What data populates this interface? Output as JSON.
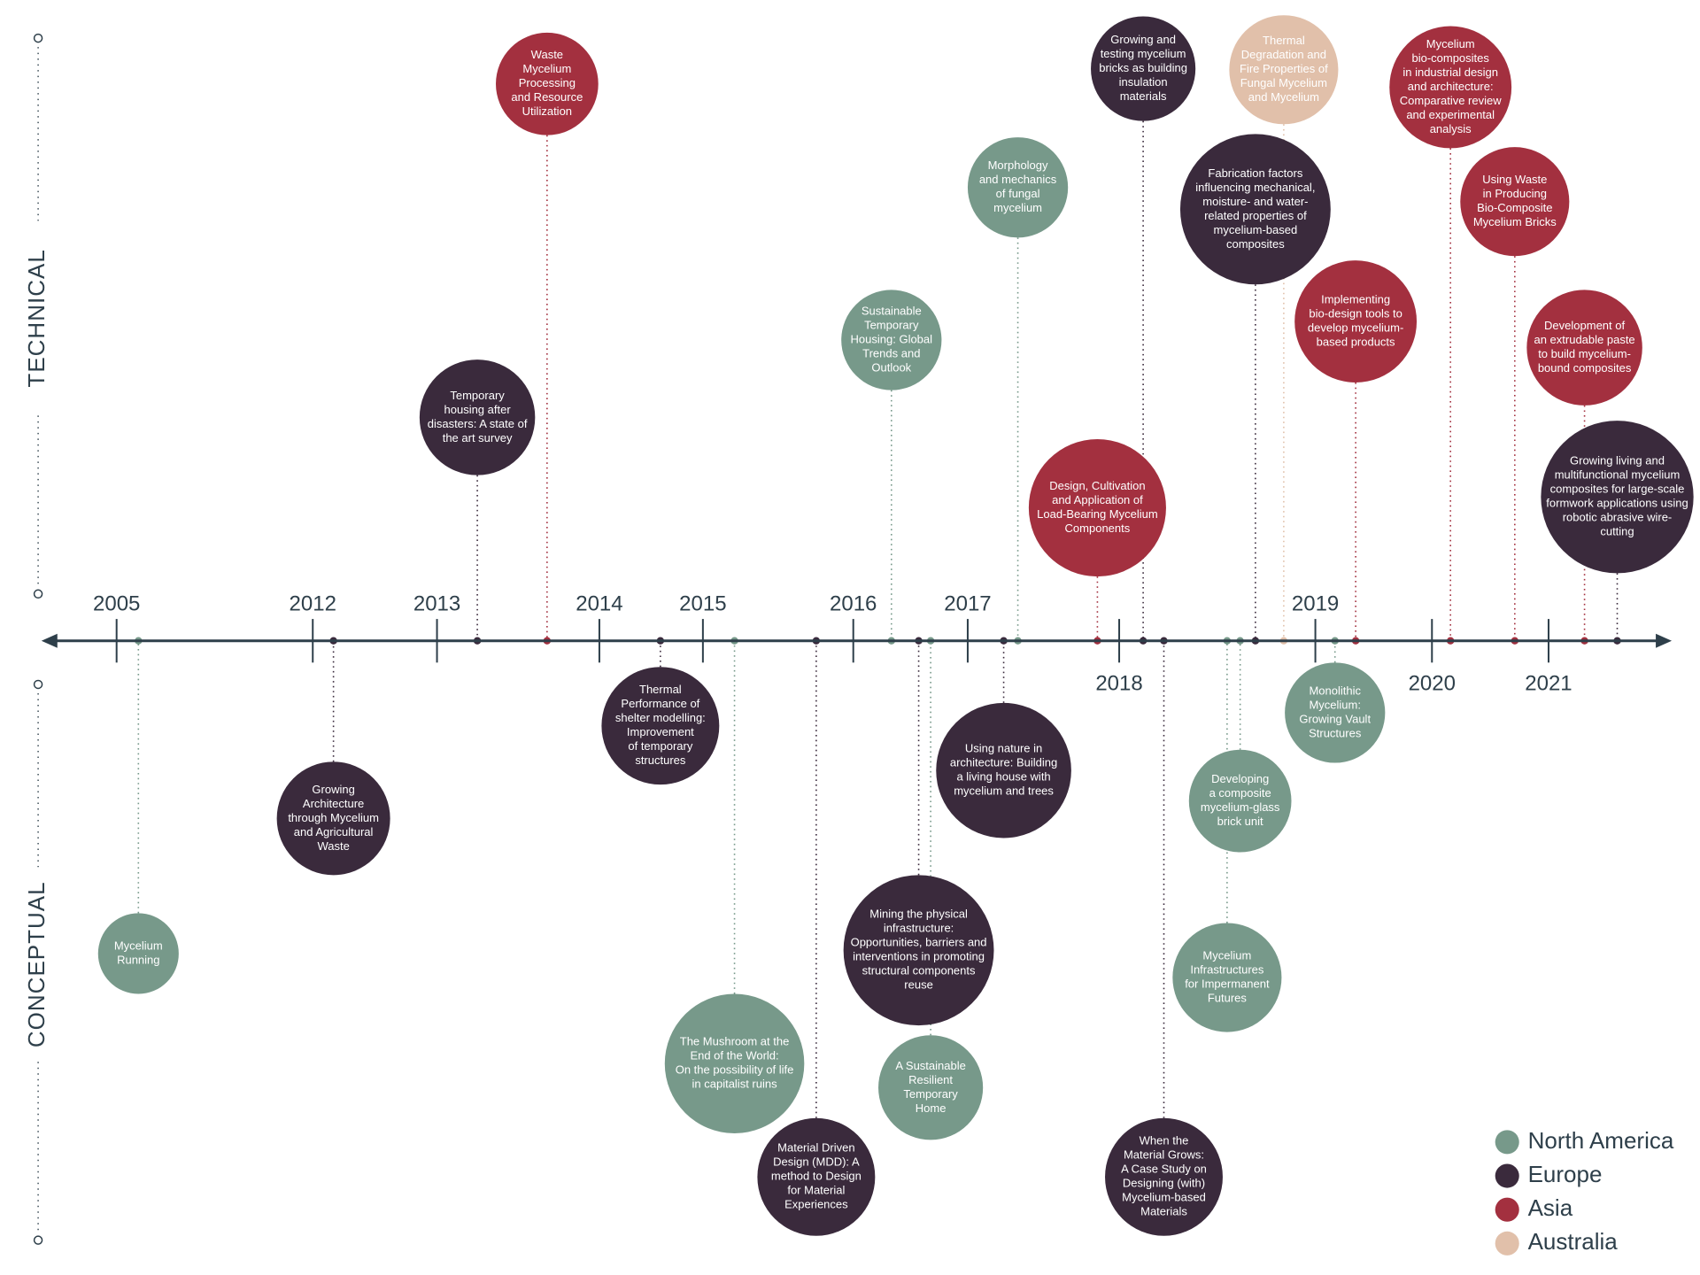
{
  "colors": {
    "North America": "#77998a",
    "Europe": "#3a2a3c",
    "Asia": "#a3303f",
    "Australia": "#e1c0aa",
    "axis": "#2e3f4a"
  },
  "side_labels": {
    "technical": "TECHNICAL",
    "conceptual": "CONCEPTUAL"
  },
  "years": [
    "2005",
    "2012",
    "2013",
    "2014",
    "2015",
    "2016",
    "2017",
    "2018",
    "2019",
    "2020",
    "2021"
  ],
  "legend": [
    {
      "label": "North America",
      "region": "North America"
    },
    {
      "label": "Europe",
      "region": "Europe"
    },
    {
      "label": "Asia",
      "region": "Asia"
    },
    {
      "label": "Australia",
      "region": "Australia"
    }
  ],
  "publications": [
    {
      "name": "pub-waste-mycelium-processing",
      "region": "Asia",
      "lines": [
        "Waste",
        "Mycelium",
        "Processing",
        "and Resource",
        "Utilization"
      ]
    },
    {
      "name": "pub-temporary-housing-disasters",
      "region": "Europe",
      "lines": [
        "Temporary",
        "housing after",
        "disasters: A state of",
        "the art survey"
      ]
    },
    {
      "name": "pub-sustainable-temporary-housing",
      "region": "North America",
      "lines": [
        "Sustainable",
        "Temporary",
        "Housing: Global",
        "Trends and",
        "Outlook"
      ]
    },
    {
      "name": "pub-morphology-mechanics",
      "region": "North America",
      "lines": [
        "Morphology",
        "and mechanics",
        "of fungal",
        "mycelium"
      ]
    },
    {
      "name": "pub-growing-testing-bricks",
      "region": "Europe",
      "lines": [
        "Growing and",
        "testing mycelium",
        "bricks as building",
        "insulation",
        "materials"
      ]
    },
    {
      "name": "pub-thermal-degradation",
      "region": "Australia",
      "lines": [
        "Thermal",
        "Degradation and",
        "Fire Properties of",
        "Fungal Mycelium",
        "and Mycelium"
      ]
    },
    {
      "name": "pub-fabrication-factors",
      "region": "Europe",
      "lines": [
        "Fabrication factors",
        "influencing mechanical,",
        "moisture- and water-",
        "related properties of",
        "mycelium-based",
        "composites"
      ]
    },
    {
      "name": "pub-design-cultivation",
      "region": "Asia",
      "lines": [
        "Design, Cultivation",
        "and Application of",
        "Load-Bearing Mycelium",
        "Components"
      ]
    },
    {
      "name": "pub-bio-composites-industrial",
      "region": "Asia",
      "lines": [
        "Mycelium",
        "bio-composites",
        "in industrial design",
        "and architecture:",
        "Comparative review",
        "and experimental",
        "analysis"
      ]
    },
    {
      "name": "pub-waste-bricks",
      "region": "Asia",
      "lines": [
        "Using Waste",
        "in Producing",
        "Bio-Composite",
        "Mycelium Bricks"
      ]
    },
    {
      "name": "pub-bio-design-tools",
      "region": "Asia",
      "lines": [
        "Implementing",
        "bio-design tools to",
        "develop mycelium-",
        "based products"
      ]
    },
    {
      "name": "pub-extrudable-paste",
      "region": "Asia",
      "lines": [
        "Development of",
        "an extrudable paste",
        "to build mycelium-",
        "bound composites"
      ]
    },
    {
      "name": "pub-living-multifunctional",
      "region": "Europe",
      "lines": [
        "Growing living and",
        "multifunctional mycelium",
        "composites for large-scale",
        "formwork applications using",
        "robotic abrasive wire-",
        "cutting"
      ]
    },
    {
      "name": "pub-mycelium-running",
      "region": "North America",
      "lines": [
        "Mycelium",
        "Running"
      ]
    },
    {
      "name": "pub-growing-architecture",
      "region": "Europe",
      "lines": [
        "Growing",
        "Architecture",
        "through Mycelium",
        "and Agricultural",
        "Waste"
      ]
    },
    {
      "name": "pub-thermal-performance-shelter",
      "region": "Europe",
      "lines": [
        "Thermal",
        "Performance of",
        "shelter modelling:",
        "Improvement",
        "of temporary",
        "structures"
      ]
    },
    {
      "name": "pub-mushroom-end-of-world",
      "region": "North America",
      "lines": [
        "The Mushroom at the",
        "End of the World:",
        "On the possibility of life",
        "in capitalist ruins"
      ]
    },
    {
      "name": "pub-material-driven-design",
      "region": "Europe",
      "lines": [
        "Material Driven",
        "Design (MDD): A",
        "method to Design",
        "for Material",
        "Experiences"
      ]
    },
    {
      "name": "pub-mining-physical-infrastructure",
      "region": "Europe",
      "lines": [
        "Mining the physical",
        "infrastructure:",
        "Opportunities, barriers and",
        "interventions in promoting",
        "structural components",
        "reuse"
      ]
    },
    {
      "name": "pub-sustainable-resilient-home",
      "region": "North America",
      "lines": [
        "A Sustainable",
        "Resilient",
        "Temporary",
        "Home"
      ]
    },
    {
      "name": "pub-using-nature-architecture",
      "region": "Europe",
      "lines": [
        "Using nature in",
        "architecture: Building",
        "a living house with",
        "mycelium and trees"
      ]
    },
    {
      "name": "pub-mycelium-glass-brick",
      "region": "North America",
      "lines": [
        "Developing",
        "a composite",
        "mycelium-glass",
        "brick unit"
      ]
    },
    {
      "name": "pub-infrastructures-impermanent",
      "region": "North America",
      "lines": [
        "Mycelium",
        "Infrastructures",
        "for Impermanent",
        "Futures"
      ]
    },
    {
      "name": "pub-when-material-grows",
      "region": "Europe",
      "lines": [
        "When the",
        "Material Grows:",
        "A Case Study on",
        "Designing (with)",
        "Mycelium-based",
        "Materials"
      ]
    },
    {
      "name": "pub-monolithic-mycelium",
      "region": "North America",
      "lines": [
        "Monolithic",
        "Mycelium:",
        "Growing Vault",
        "Structures"
      ]
    }
  ]
}
